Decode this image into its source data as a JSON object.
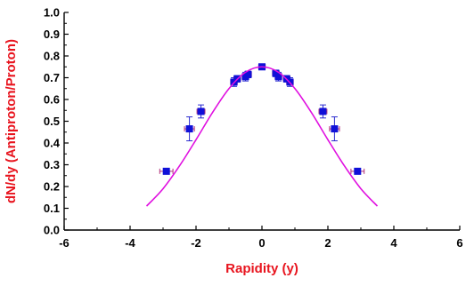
{
  "chart_data": {
    "type": "scatter",
    "xlabel": "Rapidity (y)",
    "ylabel": "dN/dy (Antiproton/Proton)",
    "xlim": [
      -6,
      6
    ],
    "ylim": [
      0,
      1.0
    ],
    "x_ticks": [
      -6,
      -4,
      -2,
      0,
      2,
      4,
      6
    ],
    "y_ticks": [
      0.0,
      0.1,
      0.2,
      0.3,
      0.4,
      0.5,
      0.6,
      0.7,
      0.8,
      0.9,
      1.0
    ],
    "x_tick_labels": [
      "-6",
      "-4",
      "-2",
      "0",
      "2",
      "4",
      "6"
    ],
    "y_tick_labels": [
      "0.0",
      "0.1",
      "0.2",
      "0.3",
      "0.4",
      "0.5",
      "0.6",
      "0.7",
      "0.8",
      "0.9",
      "1.0"
    ],
    "grid": false,
    "series": [
      {
        "kind": "points",
        "color": "#1010d8",
        "error_color": "#2a2ad0",
        "xerr_color": "#b0307a",
        "points": [
          {
            "x": -2.9,
            "y": 0.27,
            "xerr": 0.2,
            "yerr": 0.0
          },
          {
            "x": -2.2,
            "y": 0.465,
            "xerr": 0.15,
            "yerr": 0.055
          },
          {
            "x": -1.85,
            "y": 0.545,
            "xerr": 0.12,
            "yerr": 0.03
          },
          {
            "x": -0.85,
            "y": 0.68,
            "xerr": 0.1,
            "yerr": 0.02
          },
          {
            "x": -0.75,
            "y": 0.695,
            "xerr": 0.1,
            "yerr": 0.015
          },
          {
            "x": -0.5,
            "y": 0.705,
            "xerr": 0.1,
            "yerr": 0.02
          },
          {
            "x": -0.42,
            "y": 0.715,
            "xerr": 0.1,
            "yerr": 0.015
          },
          {
            "x": 0.0,
            "y": 0.75,
            "xerr": 0.1,
            "yerr": 0.01
          },
          {
            "x": 0.42,
            "y": 0.72,
            "xerr": 0.1,
            "yerr": 0.015
          },
          {
            "x": 0.5,
            "y": 0.705,
            "xerr": 0.1,
            "yerr": 0.02
          },
          {
            "x": 0.75,
            "y": 0.695,
            "xerr": 0.1,
            "yerr": 0.015
          },
          {
            "x": 0.85,
            "y": 0.68,
            "xerr": 0.1,
            "yerr": 0.02
          },
          {
            "x": 1.85,
            "y": 0.545,
            "xerr": 0.12,
            "yerr": 0.03
          },
          {
            "x": 2.2,
            "y": 0.465,
            "xerr": 0.15,
            "yerr": 0.055
          },
          {
            "x": 2.9,
            "y": 0.27,
            "xerr": 0.2,
            "yerr": 0.0
          }
        ]
      },
      {
        "kind": "curve",
        "color": "#e010e0",
        "x": [
          -3.5,
          -3.0,
          -2.5,
          -2.0,
          -1.5,
          -1.0,
          -0.5,
          0.0,
          0.5,
          1.0,
          1.5,
          2.0,
          2.5,
          3.0,
          3.5
        ],
        "y": [
          0.11,
          0.19,
          0.295,
          0.415,
          0.54,
          0.65,
          0.725,
          0.75,
          0.725,
          0.65,
          0.54,
          0.415,
          0.295,
          0.19,
          0.11
        ]
      }
    ],
    "colors": {
      "axis_title": "#e8141e",
      "axes": "#000000"
    }
  }
}
